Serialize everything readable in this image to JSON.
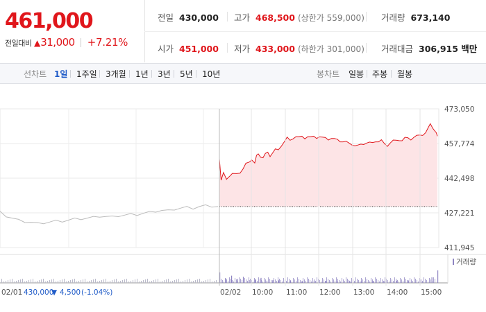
{
  "quote": {
    "price": "461,000",
    "change_label": "전일대비",
    "change_arrow": "▲",
    "change_amount": "31,000",
    "change_pct": "+7.21%"
  },
  "stats": {
    "prev_close": {
      "label": "전일",
      "value": "430,000"
    },
    "high": {
      "label": "고가",
      "value": "468,500",
      "limit": "(상한가 559,000)"
    },
    "volume": {
      "label": "거래량",
      "value": "673,140"
    },
    "open": {
      "label": "시가",
      "value": "451,000"
    },
    "low": {
      "label": "저가",
      "value": "433,000",
      "limit": "(하한가 301,000)"
    },
    "trade_value": {
      "label": "거래대금",
      "value": "306,915 백만"
    }
  },
  "chart_tabs": {
    "label": "선차트",
    "items": [
      "1일",
      "1주일",
      "3개월",
      "1년",
      "3년",
      "5년",
      "10년"
    ],
    "active": "1일"
  },
  "candle_tabs": {
    "label": "봉차트",
    "items": [
      "일봉",
      "주봉",
      "월봉"
    ]
  },
  "colors": {
    "up": "#e0161b",
    "down": "#1f5bc8",
    "prev_day_line": "#bbbbbb",
    "area_fill": "#fde4e6",
    "volume_today": "#8e84c2",
    "volume_prev": "#b9b9c9"
  },
  "chart_data": {
    "type": "line",
    "y_ticks": [
      "473,050",
      "457,774",
      "442,498",
      "427,221",
      "411,945"
    ],
    "ylim": [
      411945,
      473050
    ],
    "baseline": 430000,
    "x_ticks": [
      "02/02",
      "10:00",
      "11:00",
      "12:00",
      "13:00",
      "14:00",
      "15:00"
    ],
    "x_start_label": "02/01",
    "prev_day_summary": {
      "close": "430,000",
      "arrow": "▼",
      "change": "4,500",
      "pct": "(-1.04%)"
    },
    "volume_legend": "거래량",
    "series": [
      {
        "points": [
          [
            -0.05,
            427500
          ],
          [
            -0.045,
            425800
          ],
          [
            -0.04,
            424900
          ],
          [
            -0.035,
            423900
          ],
          [
            -0.03,
            423300
          ],
          [
            -0.025,
            423000
          ],
          [
            -0.02,
            422500
          ],
          [
            -0.015,
            422800
          ],
          [
            -0.01,
            423200
          ],
          [
            -0.005,
            423600
          ],
          [
            0,
            423500
          ],
          [
            0.005,
            424000
          ],
          [
            0.01,
            424500
          ],
          [
            0.015,
            424600
          ],
          [
            0.02,
            424900
          ],
          [
            0.025,
            425200
          ],
          [
            0.03,
            425700
          ],
          [
            0.035,
            425600
          ],
          [
            0.04,
            425400
          ],
          [
            0.045,
            425900
          ],
          [
            0.05,
            426200
          ],
          [
            0.055,
            426500
          ],
          [
            0.06,
            426400
          ],
          [
            0.065,
            427000
          ],
          [
            0.07,
            427400
          ],
          [
            0.075,
            427900
          ],
          [
            0.08,
            428300
          ],
          [
            0.085,
            428100
          ],
          [
            0.09,
            428800
          ],
          [
            0.095,
            429300
          ],
          [
            0.1,
            429600
          ],
          [
            0.105,
            429200
          ],
          [
            0.11,
            430000
          ],
          [
            0.115,
            430300
          ],
          [
            0.12,
            430100
          ],
          [
            0.125,
            430000
          ]
        ]
      },
      {
        "points": [
          [
            0,
            451000
          ],
          [
            0.03,
            441000
          ],
          [
            0.07,
            445000
          ],
          [
            0.12,
            442500
          ],
          [
            0.18,
            443500
          ],
          [
            0.22,
            444000
          ],
          [
            0.29,
            444500
          ],
          [
            0.35,
            445200
          ],
          [
            0.4,
            446500
          ],
          [
            0.45,
            448500
          ],
          [
            0.5,
            449500
          ],
          [
            0.55,
            451000
          ],
          [
            0.6,
            449200
          ],
          [
            0.63,
            452000
          ],
          [
            0.66,
            453200
          ],
          [
            0.7,
            452200
          ],
          [
            0.74,
            451500
          ],
          [
            0.78,
            452800
          ],
          [
            0.82,
            454000
          ],
          [
            0.86,
            452500
          ],
          [
            0.9,
            453500
          ],
          [
            0.95,
            454800
          ],
          [
            1.0,
            455000
          ],
          [
            1.05,
            457000
          ],
          [
            1.1,
            458500
          ],
          [
            1.15,
            460000
          ],
          [
            1.2,
            459200
          ],
          [
            1.25,
            460300
          ],
          [
            1.3,
            460800
          ],
          [
            1.35,
            460200
          ],
          [
            1.4,
            461000
          ],
          [
            1.45,
            460300
          ],
          [
            1.5,
            460800
          ],
          [
            1.55,
            460200
          ],
          [
            1.6,
            461000
          ],
          [
            1.65,
            460500
          ],
          [
            1.7,
            460700
          ],
          [
            1.75,
            460000
          ],
          [
            1.8,
            460400
          ],
          [
            1.85,
            459800
          ],
          [
            1.9,
            460000
          ],
          [
            1.95,
            459400
          ],
          [
            2.0,
            459700
          ],
          [
            2.05,
            459000
          ],
          [
            2.1,
            458500
          ],
          [
            2.15,
            458200
          ],
          [
            2.2,
            458000
          ],
          [
            2.25,
            457600
          ],
          [
            2.3,
            456800
          ],
          [
            2.35,
            456500
          ],
          [
            2.4,
            457500
          ],
          [
            2.45,
            457800
          ],
          [
            2.5,
            458000
          ],
          [
            2.55,
            457800
          ],
          [
            2.6,
            458200
          ],
          [
            2.65,
            459000
          ],
          [
            2.7,
            458500
          ],
          [
            2.75,
            458800
          ],
          [
            2.8,
            457800
          ],
          [
            2.85,
            457000
          ],
          [
            2.9,
            458000
          ],
          [
            2.95,
            458700
          ],
          [
            3.0,
            459200
          ],
          [
            3.05,
            459500
          ],
          [
            3.1,
            459000
          ],
          [
            3.15,
            459900
          ],
          [
            3.2,
            460300
          ],
          [
            3.25,
            459800
          ],
          [
            3.3,
            460500
          ],
          [
            3.35,
            460800
          ],
          [
            3.4,
            461500
          ],
          [
            3.45,
            461800
          ],
          [
            3.5,
            462500
          ],
          [
            3.55,
            464500
          ],
          [
            3.58,
            466500
          ],
          [
            3.62,
            465000
          ],
          [
            3.65,
            463500
          ],
          [
            3.68,
            462000
          ],
          [
            3.7,
            461000
          ]
        ]
      }
    ],
    "volume": [
      {
        "x": 0.0,
        "v": 0.38
      },
      {
        "x": 0.1,
        "v": 0.16
      },
      {
        "x": 0.2,
        "v": 0.26
      },
      {
        "x": 0.3,
        "v": 0.14
      },
      {
        "x": 0.4,
        "v": 0.22
      },
      {
        "x": 0.5,
        "v": 0.1
      },
      {
        "x": 0.6,
        "v": 0.12
      },
      {
        "x": 0.7,
        "v": 0.18
      },
      {
        "x": 0.8,
        "v": 0.08
      },
      {
        "x": 0.9,
        "v": 0.1
      },
      {
        "x": 1.0,
        "v": 0.09
      },
      {
        "x": 1.2,
        "v": 0.07
      },
      {
        "x": 1.4,
        "v": 0.06
      },
      {
        "x": 1.6,
        "v": 0.08
      },
      {
        "x": 1.8,
        "v": 0.07
      },
      {
        "x": 2.0,
        "v": 0.06
      },
      {
        "x": 2.2,
        "v": 0.07
      },
      {
        "x": 2.4,
        "v": 0.06
      },
      {
        "x": 2.6,
        "v": 0.06
      },
      {
        "x": 2.8,
        "v": 0.07
      },
      {
        "x": 3.0,
        "v": 0.08
      },
      {
        "x": 3.2,
        "v": 0.09
      },
      {
        "x": 3.4,
        "v": 0.12
      },
      {
        "x": 3.6,
        "v": 0.2
      },
      {
        "x": 3.7,
        "v": 0.45
      }
    ]
  }
}
